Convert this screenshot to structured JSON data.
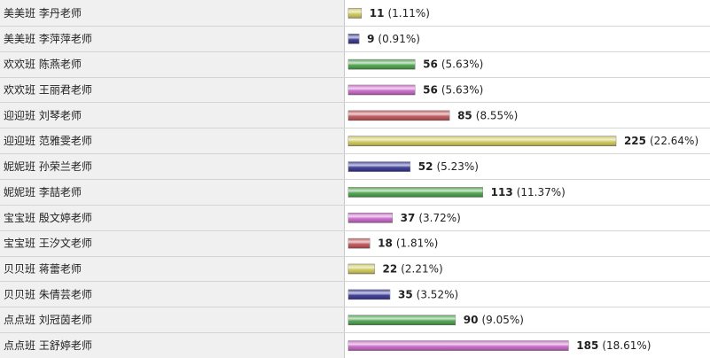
{
  "chart_data": {
    "type": "bar",
    "orientation": "horizontal",
    "categories": [
      "美美班  李丹老师",
      "美美班  李萍萍老师",
      "欢欢班  陈燕老师",
      "欢欢班  王丽君老师",
      "迎迎班  刘琴老师",
      "迎迎班  范雅雯老师",
      "妮妮班  孙荣兰老师",
      "妮妮班  李喆老师",
      "宝宝班  殷文婷老师",
      "宝宝班  王汐文老师",
      "贝贝班  蒋蕾老师",
      "贝贝班  朱倩芸老师",
      "点点班  刘冠茵老师",
      "点点班  王舒婷老师"
    ],
    "values": [
      11,
      9,
      56,
      56,
      85,
      225,
      52,
      113,
      37,
      18,
      22,
      35,
      90,
      185
    ],
    "shares": [
      "(1.11%)",
      "(0.91%)",
      "(5.63%)",
      "(5.63%)",
      "(8.55%)",
      "(22.64%)",
      "(5.23%)",
      "(11.37%)",
      "(3.72%)",
      "(1.81%)",
      "(2.21%)",
      "(3.52%)",
      "(9.05%)",
      "(18.61%)"
    ],
    "colors": [
      "#c8c24a",
      "#2a2a8c",
      "#3f9a3f",
      "#c25bc2",
      "#b9474c"
    ]
  }
}
